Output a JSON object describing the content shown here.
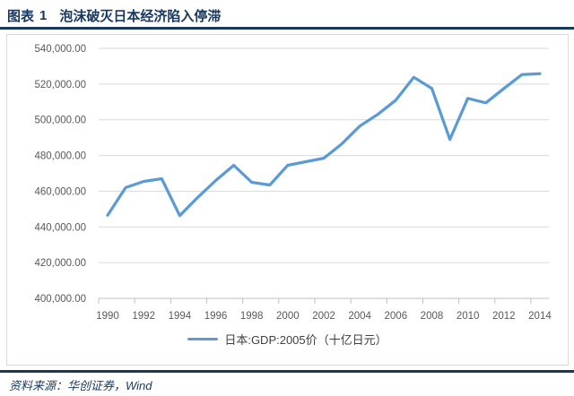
{
  "header": {
    "figure_label": "图表",
    "figure_number": "1",
    "title": "泡沫破灭日本经济陷入停滞"
  },
  "legend": {
    "label": "日本:GDP:2005价（十亿日元）"
  },
  "footer": {
    "source": "资料来源：华创证券，Wind"
  },
  "colors": {
    "accent_navy": "#17375E",
    "line_blue": "#5B9BD5",
    "grid_gray": "#D9D9D9",
    "axis_gray": "#BFBFBF",
    "tick_text_gray": "#595959",
    "legend_text_gray": "#404040"
  },
  "chart_data": {
    "type": "line",
    "title": "泡沫破灭日本经济陷入停滞",
    "xlabel": "",
    "ylabel": "",
    "x": [
      1990,
      1991,
      1992,
      1993,
      1994,
      1995,
      1996,
      1997,
      1998,
      1999,
      2000,
      2001,
      2002,
      2003,
      2004,
      2005,
      2006,
      2007,
      2008,
      2009,
      2010,
      2011,
      2012,
      2013,
      2014
    ],
    "x_tick_labels": [
      "1990",
      "1992",
      "1994",
      "1996",
      "1998",
      "2000",
      "2002",
      "2004",
      "2006",
      "2008",
      "2010",
      "2012",
      "2014"
    ],
    "series": [
      {
        "name": "日本:GDP:2005价（十亿日元）",
        "values": [
          446500,
          462000,
          465500,
          467000,
          446300,
          456500,
          466000,
          474500,
          465000,
          463500,
          474500,
          476500,
          478500,
          486500,
          496500,
          503000,
          511000,
          523800,
          517500,
          489000,
          512000,
          509500,
          517500,
          525300,
          525800
        ]
      }
    ],
    "ylim": [
      400000,
      540000
    ],
    "y_ticks": [
      400000,
      420000,
      440000,
      460000,
      480000,
      500000,
      520000,
      540000
    ],
    "y_tick_labels": [
      "400,000.00",
      "420,000.00",
      "440,000.00",
      "460,000.00",
      "480,000.00",
      "500,000.00",
      "520,000.00",
      "540,000.00"
    ],
    "grid": "horizontal",
    "legend_position": "bottom",
    "line_color": "#5B9BD5"
  }
}
